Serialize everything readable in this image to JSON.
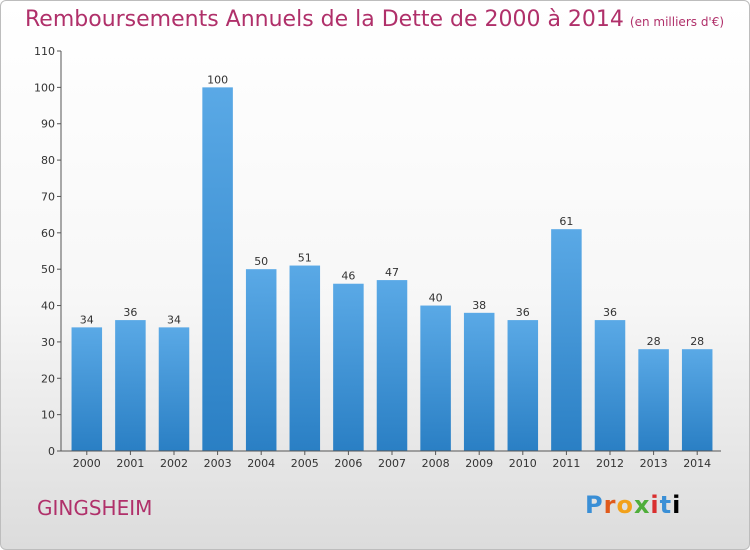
{
  "header": {
    "title": "Remboursements Annuels de la Dette de 2000 à 2014",
    "subtitle": "(en milliers d'€)"
  },
  "footer": {
    "town": "GINGSHEIM",
    "logo": "Proxiti"
  },
  "colors": {
    "title": "#b0306a",
    "bar_top": "#5aa9e6",
    "bar_bottom": "#2a7fc4"
  },
  "chart_data": {
    "type": "bar",
    "title": "Remboursements Annuels de la Dette de 2000 à 2014",
    "subtitle": "(en milliers d'€)",
    "xlabel": "",
    "ylabel": "",
    "categories": [
      "2000",
      "2001",
      "2002",
      "2003",
      "2004",
      "2005",
      "2006",
      "2007",
      "2008",
      "2009",
      "2010",
      "2011",
      "2012",
      "2013",
      "2014"
    ],
    "values": [
      34,
      36,
      34,
      100,
      50,
      51,
      46,
      47,
      40,
      38,
      36,
      61,
      36,
      28,
      28
    ],
    "ylim": [
      0,
      110
    ],
    "yticks": [
      0,
      10,
      20,
      30,
      40,
      50,
      60,
      70,
      80,
      90,
      100,
      110
    ],
    "grid": false,
    "legend": "none"
  }
}
